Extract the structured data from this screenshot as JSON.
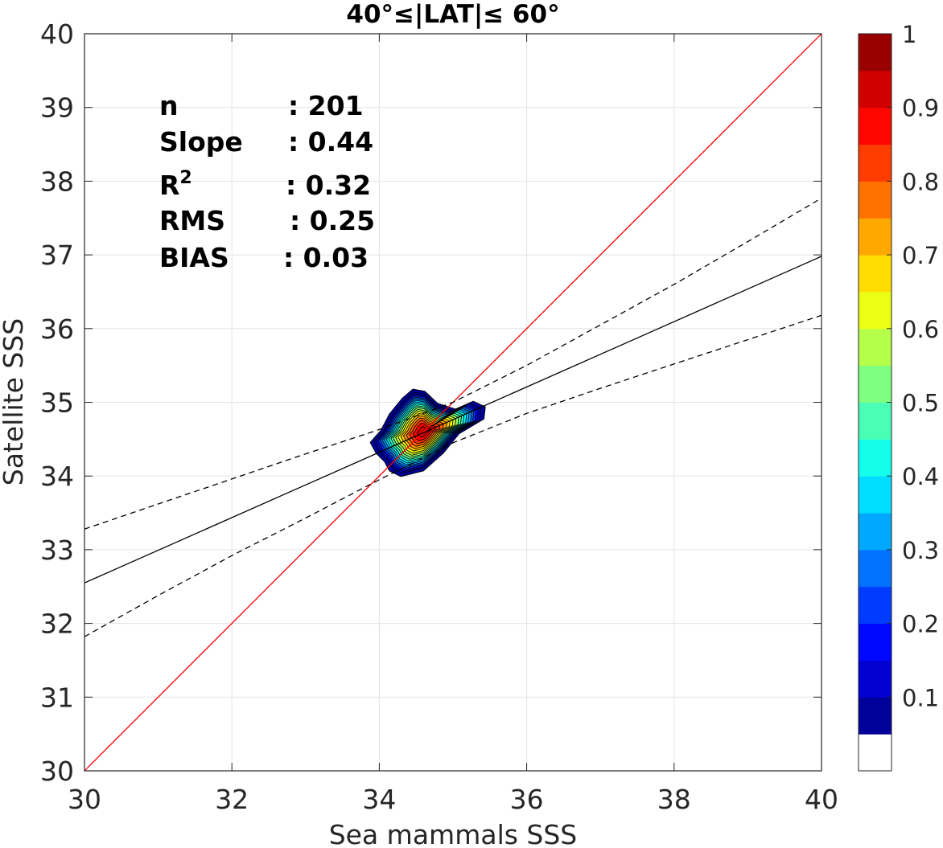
{
  "chart_data": {
    "type": "scatter",
    "subtype": "density-contour",
    "title": "40°≤|LAT|≤ 60°",
    "xlabel": "Sea mammals SSS",
    "ylabel": "Satellite SSS",
    "xlim": [
      30,
      40
    ],
    "ylim": [
      30,
      40
    ],
    "xticks": [
      "30",
      "32",
      "34",
      "36",
      "38",
      "40"
    ],
    "yticks": [
      "30",
      "31",
      "32",
      "33",
      "34",
      "35",
      "36",
      "37",
      "38",
      "39",
      "40"
    ],
    "grid": true,
    "density_center": {
      "x": 34.6,
      "y": 34.6
    },
    "density_levels": [
      0.05,
      0.1,
      0.15,
      0.2,
      0.25,
      0.3,
      0.35,
      0.4,
      0.45,
      0.5,
      0.55,
      0.6,
      0.65,
      0.7,
      0.75,
      0.8,
      0.85,
      0.9,
      0.95,
      1.0
    ],
    "lines": [
      {
        "name": "1:1",
        "color": "#ff0000",
        "style": "solid",
        "points": [
          [
            30,
            30
          ],
          [
            40,
            40
          ]
        ]
      },
      {
        "name": "fit",
        "color": "#000000",
        "style": "solid",
        "points": [
          [
            30,
            32.55
          ],
          [
            40,
            36.98
          ]
        ]
      },
      {
        "name": "upper-bound",
        "color": "#000000",
        "style": "dashed",
        "points": [
          [
            30,
            33.28
          ],
          [
            31,
            33.62
          ],
          [
            32,
            33.96
          ],
          [
            33,
            34.3
          ],
          [
            34,
            34.63
          ],
          [
            35,
            35.0
          ],
          [
            36,
            35.5
          ],
          [
            37,
            36.05
          ],
          [
            38,
            36.6
          ],
          [
            39,
            37.18
          ],
          [
            40,
            37.77
          ]
        ]
      },
      {
        "name": "lower-bound",
        "color": "#000000",
        "style": "dashed",
        "points": [
          [
            30,
            31.82
          ],
          [
            31,
            32.38
          ],
          [
            32,
            32.92
          ],
          [
            33,
            33.43
          ],
          [
            34,
            33.95
          ],
          [
            35,
            34.45
          ],
          [
            36,
            34.85
          ],
          [
            37,
            35.19
          ],
          [
            38,
            35.52
          ],
          [
            39,
            35.85
          ],
          [
            40,
            36.18
          ]
        ]
      }
    ],
    "colorbar": {
      "range": [
        0,
        1
      ],
      "ticks": [
        "0.1",
        "0.2",
        "0.3",
        "0.4",
        "0.5",
        "0.6",
        "0.7",
        "0.8",
        "0.9",
        "1"
      ],
      "colormap": "jet",
      "levels": 20
    },
    "stats": [
      {
        "label": "n",
        "value": ": 201"
      },
      {
        "label": "Slope",
        "value": ": 0.44"
      },
      {
        "label": "R",
        "sup": "2",
        "value": ": 0.32"
      },
      {
        "label": "RMS",
        "value": ": 0.25"
      },
      {
        "label": "BIAS",
        "value": ": 0.03"
      }
    ]
  }
}
